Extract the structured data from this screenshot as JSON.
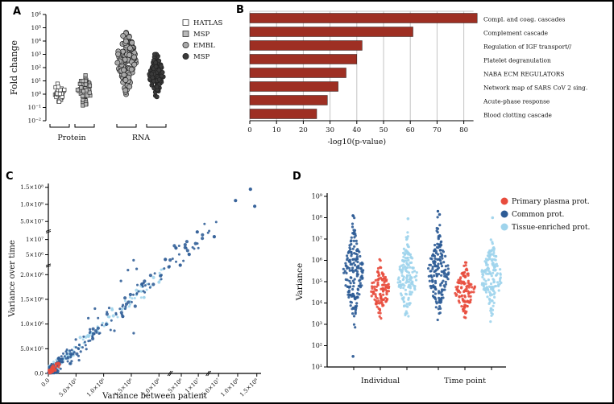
{
  "panels": {
    "a": {
      "label": "A"
    },
    "b": {
      "label": "B"
    },
    "c": {
      "label": "C"
    },
    "d": {
      "label": "D"
    }
  },
  "colors": {
    "bar": "#9e2f23",
    "red": "#e84c3d",
    "dark_blue": "#2e5c96",
    "light_blue": "#9fd4ec",
    "gray_square": "#b9b9b9",
    "gray_circle": "#a9a9a9",
    "black_circle": "#3b3b3b",
    "grid": "#c3c3c3"
  },
  "chart_data": [
    {
      "id": "A",
      "type": "scatter",
      "ylabel": "Fold change",
      "y_scale": "log",
      "ylim_log": [
        -2,
        6
      ],
      "y_ticks": [
        "10⁻²",
        "10⁻¹",
        "10⁰",
        "10¹",
        "10²",
        "10³",
        "10⁴",
        "10⁵",
        "10⁶"
      ],
      "group_axis_labels": [
        "Protein",
        "RNA"
      ],
      "legend": [
        {
          "label": "HATLAS",
          "marker": "square",
          "fill": "#ffffff"
        },
        {
          "label": "MSP",
          "marker": "square",
          "fill": "#b9b9b9"
        },
        {
          "label": "EMBL",
          "marker": "circle",
          "fill": "#a9a9a9"
        },
        {
          "label": "MSP",
          "marker": "circle",
          "fill": "#3b3b3b"
        }
      ],
      "clusters": [
        {
          "name": "HATLAS",
          "marker": "square",
          "fill": "#ffffff",
          "n": 35,
          "log_mean": 0.2,
          "log_sd": 0.35,
          "log_min": -0.6,
          "log_max": 1.1
        },
        {
          "name": "MSP",
          "marker": "square",
          "fill": "#b9b9b9",
          "n": 45,
          "log_mean": 0.3,
          "log_sd": 0.55,
          "log_min": -0.9,
          "log_max": 1.6
        },
        {
          "name": "EMBL",
          "marker": "circle",
          "fill": "#a9a9a9",
          "n": 120,
          "log_mean": 2.6,
          "log_sd": 1.1,
          "log_min": 0.0,
          "log_max": 5.2
        },
        {
          "name": "MSP",
          "marker": "circle",
          "fill": "#3b3b3b",
          "n": 120,
          "log_mean": 1.4,
          "log_sd": 0.8,
          "log_min": -0.2,
          "log_max": 3.0
        }
      ]
    },
    {
      "id": "B",
      "type": "bar",
      "orientation": "horizontal",
      "categories": [
        "Compl. and coag. cascades",
        "Complement cascade",
        "Regulation of IGF transport//",
        "Platelet degranulation",
        "NABA ECM REGULATORS",
        "Network map of SARS CoV 2 sing.",
        "Acute-phase response",
        "Blood clotting cascade"
      ],
      "values": [
        85,
        61,
        42,
        40,
        36,
        33,
        29,
        25
      ],
      "xlabel": "-log10(p-value)",
      "xlim": [
        0,
        90
      ],
      "x_ticks": [
        0,
        10,
        20,
        30,
        40,
        50,
        60,
        70,
        80
      ],
      "grid": true,
      "bar_color": "#9e2f23"
    },
    {
      "id": "C",
      "type": "scatter",
      "xlabel": "Variance between patient",
      "ylabel": "Variance over time",
      "axis_breaks": true,
      "x_ticks": [
        "0.0",
        "5.0×10⁵",
        "1.0×10⁶",
        "1.5×10⁶",
        "2.0×10⁶",
        "5×10⁶",
        "1×10⁷",
        "5.0×10⁷",
        "1.0×10⁸",
        "1.5×10⁸"
      ],
      "y_ticks": [
        "0.0",
        "5.0×10⁵",
        "1.0×10⁶",
        "1.5×10⁶",
        "2.0×10⁶",
        "5×10⁶",
        "1×10⁷",
        "5.0×10⁷",
        "1.0×10⁸",
        "1.5×10⁸"
      ],
      "series": [
        {
          "name": "Tissue-enriched prot.",
          "color": "#9fd4ec",
          "n": 130,
          "t_exp": 2.8,
          "t_max": 0.55,
          "jitter": 0.016
        },
        {
          "name": "Common prot.",
          "color": "#2e5c96",
          "n": 175,
          "t_exp": 2.4,
          "t_max": 0.8,
          "jitter": 0.022,
          "scatter_n": 45
        },
        {
          "name": "Primary plasma prot.",
          "color": "#e84c3d",
          "n": 60,
          "t_exp": 1.6,
          "t_max": 0.05,
          "jitter": 0.007
        }
      ],
      "outliers": {
        "common": [
          [
            0.88,
            0.91
          ],
          [
            0.97,
            0.88
          ],
          [
            0.62,
            0.57
          ],
          [
            0.55,
            0.6
          ],
          [
            0.78,
            0.72
          ],
          [
            0.7,
            0.745
          ],
          [
            0.95,
            0.97
          ],
          [
            0.44,
            0.47
          ],
          [
            0.35,
            0.3
          ],
          [
            0.6,
            0.66
          ]
        ],
        "tissue": [
          [
            0.45,
            0.4
          ],
          [
            0.3,
            0.335
          ],
          [
            0.52,
            0.48
          ]
        ]
      }
    },
    {
      "id": "D",
      "type": "beeswarm",
      "ylabel": "Variance",
      "y_scale": "log",
      "ylim_log": [
        1,
        9
      ],
      "y_ticks": [
        "10¹",
        "10²",
        "10³",
        "10⁴",
        "10⁵",
        "10⁶",
        "10⁷",
        "10⁸",
        "10⁹"
      ],
      "categories": [
        "Individual",
        "Time point"
      ],
      "series": [
        {
          "name": "Common prot.",
          "color": "#2e5c96",
          "n": 170,
          "log_mean": 5.4,
          "log_sd": 1.0,
          "log_min": 2.0,
          "log_max": 8.3
        },
        {
          "name": "Primary plasma prot.",
          "color": "#e84c3d",
          "n": 110,
          "log_mean": 4.6,
          "log_sd": 0.55,
          "log_min": 3.0,
          "log_max": 6.5
        },
        {
          "name": "Tissue-enriched prot.",
          "color": "#9fd4ec",
          "n": 150,
          "log_mean": 5.2,
          "log_sd": 0.85,
          "log_min": 2.2,
          "log_max": 8.0
        }
      ],
      "outliers": [
        [
          0,
          0,
          8.1
        ],
        [
          0,
          0,
          1.5
        ],
        [
          1,
          0,
          8.15
        ],
        [
          0,
          2,
          7.95
        ],
        [
          1,
          2,
          8.0
        ]
      ],
      "legend": [
        {
          "label": "Primary plasma prot.",
          "color": "#e84c3d"
        },
        {
          "label": "Common prot.",
          "color": "#2e5c96"
        },
        {
          "label": "Tissue-enriched prot.",
          "color": "#9fd4ec"
        }
      ]
    }
  ]
}
